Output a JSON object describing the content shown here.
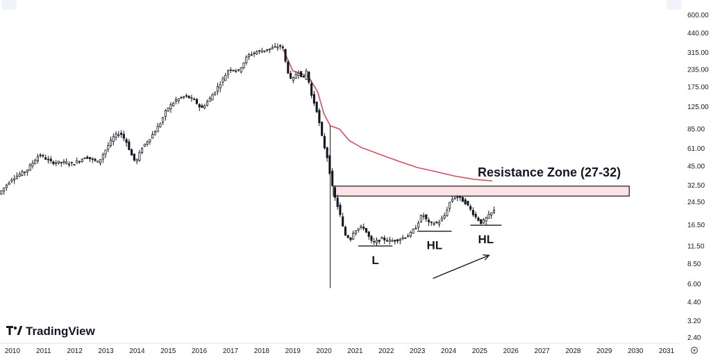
{
  "brand": {
    "name": "TradingView",
    "logo_icon": "tradingview-logo-icon"
  },
  "toolbar": {
    "left_icon": "more-icon",
    "right_icon": "more-icon"
  },
  "settings_icon": "settings-gear-icon",
  "chart_data": {
    "type": "candlestick",
    "y_scale": "log",
    "ylim": [
      2.2,
      720
    ],
    "xlim": [
      2009.6,
      2031.4
    ],
    "grid": false,
    "y_ticks": [
      "600.00",
      "440.00",
      "315.00",
      "235.00",
      "175.00",
      "125.00",
      "85.00",
      "61.00",
      "45.00",
      "32.50",
      "24.50",
      "16.50",
      "11.50",
      "8.50",
      "6.00",
      "4.40",
      "3.20",
      "2.40"
    ],
    "x_ticks": [
      "2010",
      "2011",
      "2012",
      "2013",
      "2014",
      "2015",
      "2016",
      "2017",
      "2018",
      "2019",
      "2020",
      "2021",
      "2022",
      "2023",
      "2024",
      "2025",
      "2026",
      "2027",
      "2028",
      "2029",
      "2030",
      "2031"
    ],
    "price_path": [
      [
        2009.6,
        28
      ],
      [
        2010.0,
        36
      ],
      [
        2010.5,
        42
      ],
      [
        2010.9,
        55
      ],
      [
        2011.3,
        48
      ],
      [
        2011.7,
        48
      ],
      [
        2012.0,
        47
      ],
      [
        2012.4,
        53
      ],
      [
        2012.8,
        48
      ],
      [
        2013.0,
        58
      ],
      [
        2013.3,
        75
      ],
      [
        2013.5,
        80
      ],
      [
        2013.7,
        68
      ],
      [
        2013.9,
        52
      ],
      [
        2014.0,
        48
      ],
      [
        2014.2,
        62
      ],
      [
        2014.5,
        75
      ],
      [
        2014.8,
        95
      ],
      [
        2015.0,
        120
      ],
      [
        2015.3,
        140
      ],
      [
        2015.6,
        150
      ],
      [
        2015.9,
        138
      ],
      [
        2016.1,
        120
      ],
      [
        2016.4,
        145
      ],
      [
        2016.8,
        200
      ],
      [
        2017.0,
        240
      ],
      [
        2017.3,
        230
      ],
      [
        2017.6,
        300
      ],
      [
        2017.9,
        320
      ],
      [
        2018.2,
        330
      ],
      [
        2018.5,
        345
      ],
      [
        2018.7,
        355
      ],
      [
        2018.85,
        240
      ],
      [
        2019.0,
        190
      ],
      [
        2019.2,
        230
      ],
      [
        2019.4,
        200
      ],
      [
        2019.5,
        240
      ],
      [
        2019.6,
        160
      ],
      [
        2019.8,
        120
      ],
      [
        2020.0,
        70
      ],
      [
        2020.15,
        52
      ],
      [
        2020.25,
        38
      ],
      [
        2020.35,
        28
      ],
      [
        2020.45,
        24
      ],
      [
        2020.55,
        20
      ],
      [
        2020.7,
        14
      ],
      [
        2020.9,
        13
      ],
      [
        2021.0,
        15
      ],
      [
        2021.3,
        16
      ],
      [
        2021.6,
        12
      ],
      [
        2021.9,
        13
      ],
      [
        2022.2,
        12.5
      ],
      [
        2022.5,
        13
      ],
      [
        2022.8,
        14
      ],
      [
        2023.0,
        16
      ],
      [
        2023.2,
        20
      ],
      [
        2023.4,
        17
      ],
      [
        2023.7,
        17
      ],
      [
        2023.9,
        19
      ],
      [
        2024.1,
        25
      ],
      [
        2024.3,
        27
      ],
      [
        2024.6,
        24
      ],
      [
        2024.9,
        19
      ],
      [
        2025.1,
        17
      ],
      [
        2025.3,
        19
      ],
      [
        2025.5,
        21
      ]
    ],
    "moving_average": [
      [
        2018.7,
        330
      ],
      [
        2019.0,
        230
      ],
      [
        2019.5,
        210
      ],
      [
        2019.8,
        160
      ],
      [
        2020.0,
        110
      ],
      [
        2020.2,
        90
      ],
      [
        2020.5,
        85
      ],
      [
        2020.8,
        70
      ],
      [
        2021.2,
        62
      ],
      [
        2021.8,
        55
      ],
      [
        2022.4,
        49
      ],
      [
        2023.0,
        44
      ],
      [
        2023.6,
        41
      ],
      [
        2024.2,
        38
      ],
      [
        2024.8,
        36
      ],
      [
        2025.4,
        35
      ]
    ],
    "wick_low": [
      2020.2,
      5.6
    ],
    "resistance_zone": {
      "label": "Resistance Zone (27-32)",
      "low": 27,
      "high": 32,
      "x_start": 2020.3,
      "x_end": 2029.8,
      "fill": "#fde2e6",
      "border": "#131722"
    },
    "swing_points": [
      {
        "label": "L",
        "price": 11.5,
        "x_from": 2021.1,
        "x_to": 2022.2
      },
      {
        "label": "HL",
        "price": 14.8,
        "x_from": 2023.0,
        "x_to": 2024.1
      },
      {
        "label": "HL",
        "price": 16.4,
        "x_from": 2024.7,
        "x_to": 2025.7
      }
    ],
    "trend_arrow": {
      "from": [
        2023.5,
        6.6
      ],
      "to": [
        2025.3,
        9.8
      ]
    },
    "colors": {
      "candle": "#131722",
      "ma": "#d64c5e",
      "background": "#ffffff"
    }
  }
}
